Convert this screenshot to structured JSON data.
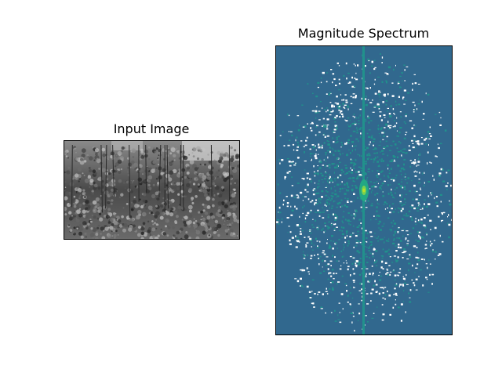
{
  "figure": {
    "left_title": "Input Image",
    "right_title": "Magnitude Spectrum"
  },
  "chart_data": [
    {
      "type": "image",
      "title": "Input Image",
      "content": "grayscale photograph of forest trees",
      "axes": "off",
      "colormap": "gray"
    },
    {
      "type": "heatmap",
      "title": "Magnitude Spectrum",
      "content": "centered 2D FFT log-magnitude of the input image",
      "axes": "off",
      "colormap": "viridis",
      "colors": {
        "background": "#31688e",
        "mid": "#21918c",
        "peak": "#bddf26",
        "gap": "#ffffff"
      }
    }
  ]
}
